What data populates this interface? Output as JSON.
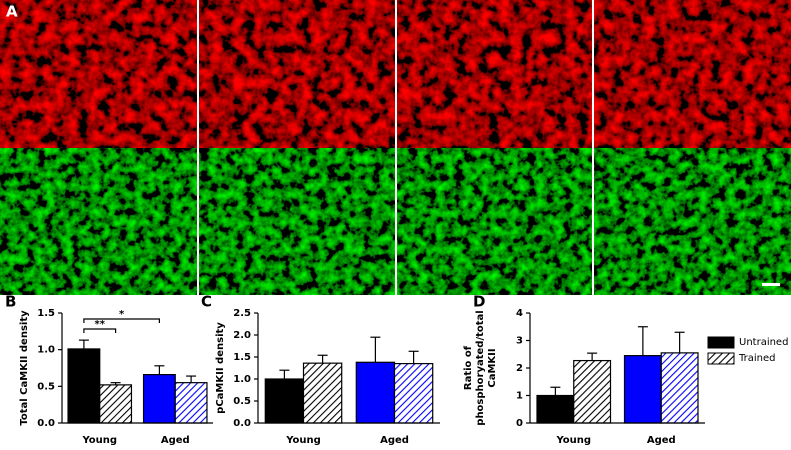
{
  "panel_labels": [
    "A",
    "B",
    "C",
    "D"
  ],
  "chart_data": [
    {
      "type": "bar",
      "y_label_lines": [
        "Total CaMKII density"
      ],
      "categories": [
        "Young",
        "Aged"
      ],
      "series": [
        {
          "colors": [
            "#000000",
            "#0000ff"
          ],
          "hatch": false,
          "values": [
            1.01,
            0.66
          ],
          "errors": [
            0.12,
            0.12
          ]
        },
        {
          "colors": [
            "#000000",
            "#0000ff"
          ],
          "hatch": true,
          "values": [
            0.52,
            0.55
          ],
          "errors": [
            0.03,
            0.09
          ]
        }
      ],
      "significance": [
        "**",
        "*"
      ],
      "ylim": [
        0,
        1.5
      ],
      "yticks": [
        {
          "value": 0,
          "label": "0.0"
        },
        0.5,
        {
          "value": 1,
          "label": "1.0"
        },
        1.5
      ]
    },
    {
      "type": "bar",
      "y_label_lines": [
        "pCaMKII density"
      ],
      "categories": [
        "Young",
        "Aged"
      ],
      "series": [
        {
          "colors": [
            "#000000",
            "#0000ff"
          ],
          "hatch": false,
          "values": [
            1.0,
            1.38
          ],
          "errors": [
            0.2,
            0.57
          ]
        },
        {
          "colors": [
            "#000000",
            "#0000ff"
          ],
          "hatch": true,
          "values": [
            1.36,
            1.35
          ],
          "errors": [
            0.18,
            0.28
          ]
        }
      ],
      "ylim": [
        0,
        2.5
      ],
      "yticks": [
        {
          "value": 0,
          "label": "0.0"
        },
        0.5,
        {
          "value": 1,
          "label": "1.0"
        },
        1.5,
        {
          "value": 2,
          "label": "2.0"
        },
        2.5
      ]
    },
    {
      "type": "bar",
      "y_label_lines": [
        "Ratio of",
        "phosphoryated/total",
        "CaMKII"
      ],
      "categories": [
        "Young",
        "Aged"
      ],
      "series": [
        {
          "name": "Untrained",
          "colors": [
            "#000000",
            "#0000ff"
          ],
          "hatch": false,
          "values": [
            1.0,
            2.45
          ],
          "errors": [
            0.3,
            1.05
          ]
        },
        {
          "name": "Trained",
          "colors": [
            "#000000",
            "#0000ff"
          ],
          "hatch": true,
          "values": [
            2.27,
            2.55
          ],
          "errors": [
            0.27,
            0.75
          ]
        }
      ],
      "legend": "right",
      "ylim": [
        0,
        4
      ],
      "yticks": [
        0,
        1,
        2,
        3,
        4
      ]
    }
  ]
}
